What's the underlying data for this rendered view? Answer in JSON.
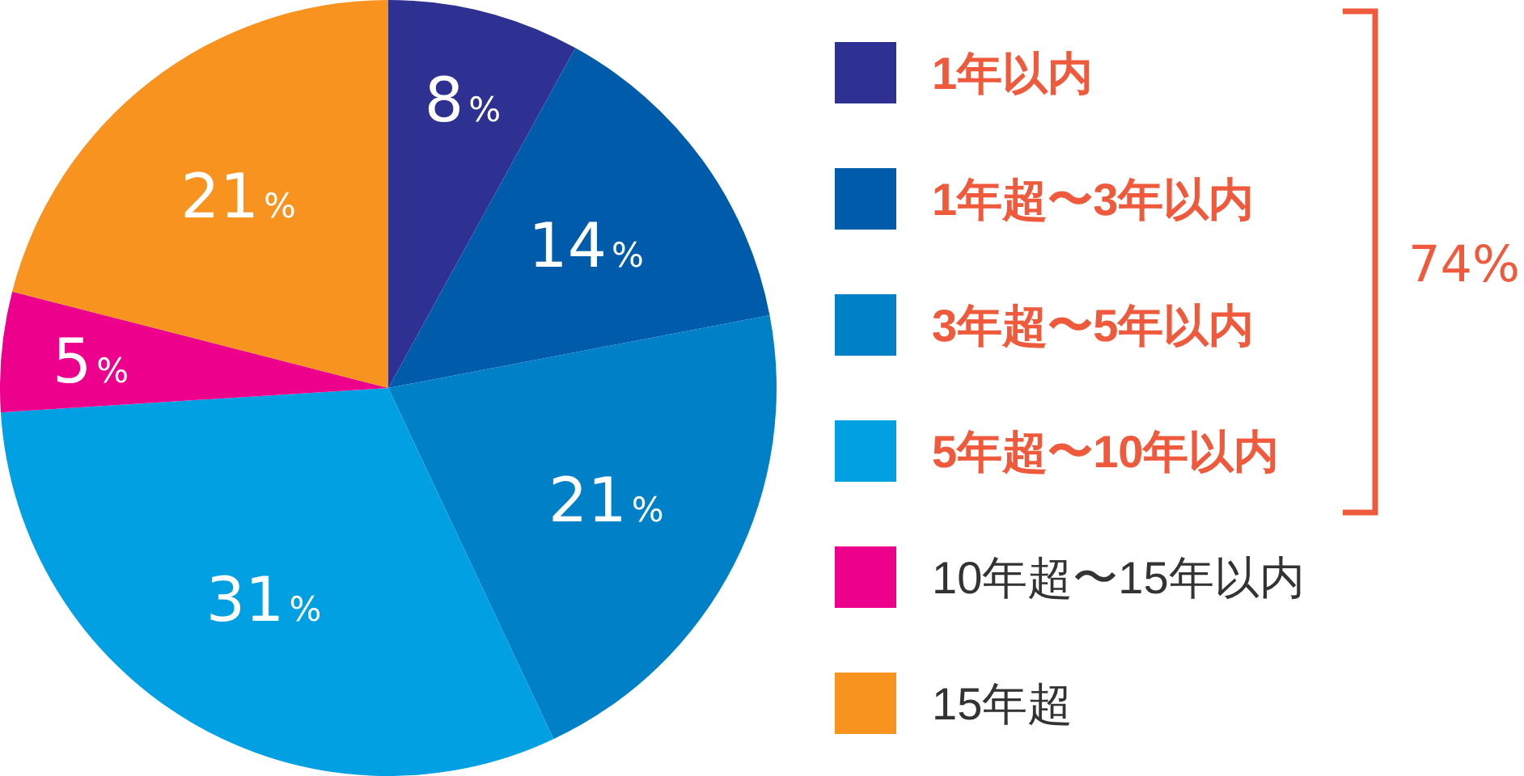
{
  "chart_data": {
    "type": "pie",
    "categories": [
      "1年以内",
      "1年超〜3年以内",
      "3年超〜5年以内",
      "5年超〜10年以内",
      "10年超〜15年以内",
      "15年超"
    ],
    "values": [
      8,
      14,
      21,
      31,
      5,
      21
    ],
    "colors": [
      "#2e3192",
      "#005bab",
      "#0080c7",
      "#00a0e3",
      "#ec008c",
      "#f7931e"
    ],
    "value_labels": [
      "8%",
      "14%",
      "21%",
      "31%",
      "5%",
      "21%"
    ],
    "legend": "right",
    "annotations": [
      "74%"
    ]
  }
}
